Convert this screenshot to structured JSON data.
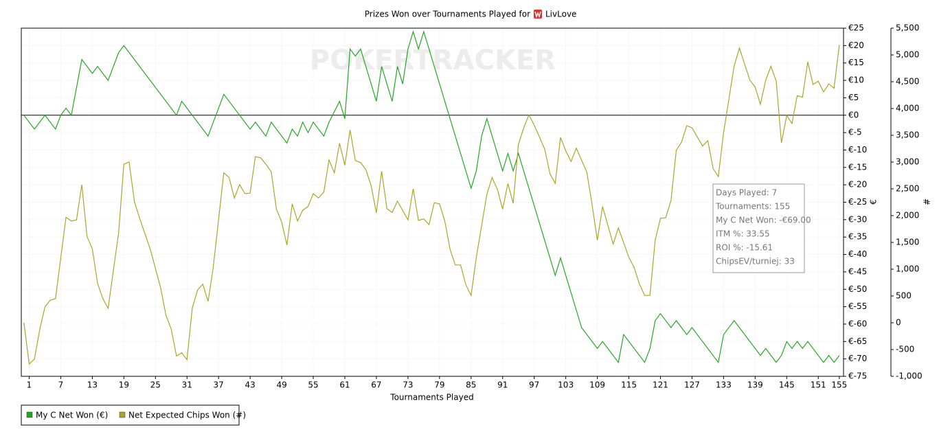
{
  "chart_data": {
    "type": "line",
    "title": "Prizes Won over Tournaments Played for",
    "player": "LivLove",
    "watermark": "POKERTRACKER",
    "x_label": "Tournaments Played",
    "y_label": "€",
    "y2_label": "#",
    "xlim": [
      -0.5,
      155.8
    ],
    "xticks": [
      1,
      7,
      13,
      19,
      25,
      31,
      37,
      43,
      49,
      55,
      61,
      67,
      73,
      79,
      85,
      91,
      97,
      103,
      109,
      115,
      121,
      127,
      133,
      139,
      145,
      151,
      155
    ],
    "ylim": [
      -75,
      25
    ],
    "yticks": [
      {
        "value": 25,
        "label": "€25"
      },
      {
        "value": 20,
        "label": "€20"
      },
      {
        "value": 15,
        "label": "€15"
      },
      {
        "value": 10,
        "label": "€10"
      },
      {
        "value": 5,
        "label": "€5"
      },
      {
        "value": 0,
        "label": "€0"
      },
      {
        "value": -5,
        "label": "€-5"
      },
      {
        "value": -10,
        "label": "€-10"
      },
      {
        "value": -15,
        "label": "€-15"
      },
      {
        "value": -20,
        "label": "€-20"
      },
      {
        "value": -25,
        "label": "€-25"
      },
      {
        "value": -30,
        "label": "€-30"
      },
      {
        "value": -35,
        "label": "€-35"
      },
      {
        "value": -40,
        "label": "€-40"
      },
      {
        "value": -45,
        "label": "€-45"
      },
      {
        "value": -50,
        "label": "€-50"
      },
      {
        "value": -55,
        "label": "€-55"
      },
      {
        "value": -60,
        "label": "€-60"
      },
      {
        "value": -65,
        "label": "€-65"
      },
      {
        "value": -70,
        "label": "€-70"
      },
      {
        "value": -75,
        "label": "€-75"
      }
    ],
    "y2lim": [
      -1000,
      5500
    ],
    "y2ticks": [
      {
        "value": 5500,
        "label": "5,500"
      },
      {
        "value": 5000,
        "label": "5,000"
      },
      {
        "value": 4500,
        "label": "4,500"
      },
      {
        "value": 4000,
        "label": "4,000"
      },
      {
        "value": 3500,
        "label": "3,500"
      },
      {
        "value": 3000,
        "label": "3,000"
      },
      {
        "value": 2500,
        "label": "2,500"
      },
      {
        "value": 2000,
        "label": "2,000"
      },
      {
        "value": 1500,
        "label": "1,500"
      },
      {
        "value": 1000,
        "label": "1,000"
      },
      500,
      0,
      -500,
      {
        "value": -1000,
        "label": "-1,000"
      }
    ],
    "grid": true,
    "legend": "bottom-left",
    "tooltip": [
      "Days Played: 7",
      "Tournaments: 155",
      "My C Net Won: -€69.00",
      "ITM %: 33.55",
      "ROI %: -15.61",
      "ChipsEV/turniej: 33"
    ],
    "series": [
      {
        "name": "My C Net Won (€)",
        "color": "#22a722",
        "axis": "y",
        "x": [
          0,
          2,
          4,
          6,
          7,
          8,
          9,
          11,
          13,
          14,
          16,
          18,
          19,
          29,
          30,
          35,
          38,
          43,
          44,
          46,
          47,
          50,
          51,
          52,
          53,
          54,
          55,
          57,
          58,
          60,
          61,
          62,
          63,
          64,
          67,
          68,
          70,
          71,
          72,
          73,
          74,
          75,
          76,
          85,
          86,
          87,
          88,
          91,
          92,
          93,
          94,
          101,
          102,
          106,
          109,
          110,
          113,
          114,
          118,
          119,
          120,
          121,
          123,
          124,
          126,
          127,
          132,
          133,
          135,
          140,
          141,
          143,
          144,
          145,
          146,
          147,
          148,
          149,
          152,
          153,
          154,
          155
        ],
        "values": [
          0,
          -4,
          0,
          -4,
          0,
          2,
          0,
          16,
          12,
          14,
          10,
          18,
          20,
          0,
          4,
          -6,
          6,
          -4,
          -2,
          -6,
          -2,
          -8,
          -4,
          -6,
          -2,
          -5,
          -2,
          -6,
          -2,
          4,
          -1,
          19,
          17,
          19,
          4,
          14,
          4,
          14,
          9,
          19,
          24,
          19,
          24,
          -21,
          -16,
          -6,
          -1,
          -16,
          -11,
          -16,
          -11,
          -46,
          -41,
          -61,
          -67,
          -65,
          -71,
          -63,
          -71,
          -67,
          -59,
          -57,
          -61,
          -59,
          -63,
          -61,
          -71,
          -63,
          -59,
          -69,
          -67,
          -71,
          -69,
          -65,
          -67,
          -65,
          -67,
          -65,
          -71,
          -69,
          -71,
          -69
        ]
      },
      {
        "name": "Net Expected Chips Won (#)",
        "color": "#aaa52a",
        "axis": "y2",
        "x": [
          0,
          1,
          2,
          3,
          4,
          5,
          6,
          8,
          9,
          10,
          11,
          12,
          13,
          14,
          15,
          16,
          18,
          19,
          20,
          21,
          22,
          24,
          26,
          27,
          28,
          29,
          30,
          31,
          32,
          33,
          34,
          35,
          36,
          38,
          39,
          40,
          41,
          42,
          43,
          44,
          45,
          46,
          47,
          48,
          49,
          50,
          51,
          52,
          53,
          54,
          55,
          56,
          57,
          58,
          59,
          60,
          61,
          62,
          63,
          64,
          65,
          66,
          67,
          68,
          69,
          70,
          71,
          73,
          74,
          75,
          76,
          77,
          78,
          79,
          80,
          81,
          82,
          83,
          84,
          85,
          86,
          88,
          89,
          90,
          91,
          92,
          93,
          94,
          95,
          96,
          97,
          98,
          99,
          100,
          101,
          102,
          103,
          104,
          105,
          107,
          108,
          109,
          110,
          112,
          113,
          115,
          116,
          117,
          118,
          119,
          120,
          121,
          122,
          123,
          124,
          125,
          126,
          127,
          129,
          130,
          131,
          132,
          133,
          135,
          136,
          137,
          138,
          139,
          140,
          141,
          142,
          143,
          144,
          145,
          146,
          147,
          148,
          149,
          150,
          151,
          152,
          153,
          154,
          155
        ],
        "values": [
          0,
          -770,
          -680,
          -130,
          300,
          420,
          450,
          1970,
          1900,
          1920,
          2580,
          1610,
          1380,
          740,
          450,
          270,
          1680,
          2960,
          3000,
          2260,
          1950,
          1380,
          650,
          140,
          -120,
          -620,
          -560,
          -690,
          270,
          610,
          720,
          400,
          1040,
          2800,
          2710,
          2330,
          2580,
          2410,
          2420,
          3100,
          3080,
          2960,
          2820,
          2120,
          1880,
          1450,
          2220,
          1900,
          2100,
          2170,
          2410,
          2330,
          2440,
          3040,
          2800,
          3350,
          2940,
          3600,
          3030,
          2990,
          2860,
          2560,
          2050,
          2830,
          2130,
          2060,
          2270,
          1920,
          2500,
          1910,
          1940,
          1830,
          2240,
          2220,
          1900,
          1370,
          1080,
          1080,
          710,
          510,
          1220,
          2400,
          2710,
          2490,
          2120,
          2600,
          2230,
          3330,
          3640,
          3880,
          3690,
          3470,
          3240,
          2780,
          2600,
          3460,
          3210,
          3010,
          3260,
          2810,
          2210,
          1540,
          2170,
          1470,
          1770,
          1220,
          1030,
          720,
          510,
          510,
          1540,
          1950,
          1960,
          2280,
          3220,
          3370,
          3680,
          3640,
          3300,
          3400,
          2880,
          2730,
          3550,
          4790,
          5130,
          4830,
          4530,
          4400,
          4080,
          4530,
          4790,
          4510,
          3360,
          3870,
          3720,
          4240,
          4210,
          4870,
          4450,
          4510,
          4310,
          4460,
          4380,
          5190
        ]
      }
    ]
  }
}
